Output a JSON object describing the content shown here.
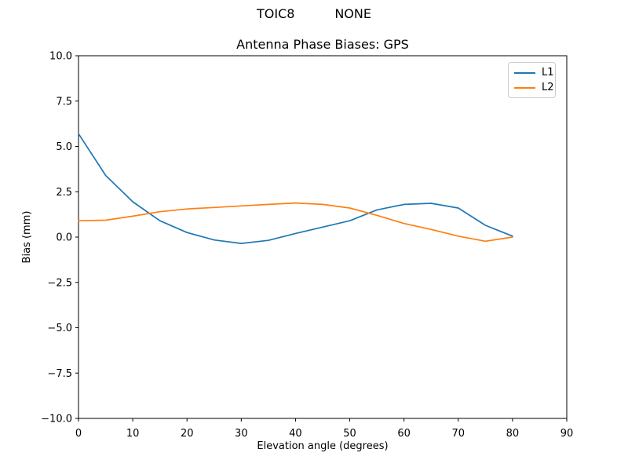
{
  "figure": {
    "suptitle": "TOIC8          NONE",
    "suptitle_parts": {
      "station": "TOIC8",
      "solution": "NONE"
    },
    "title": "Antenna Phase Biases: GPS"
  },
  "chart_data": {
    "type": "line",
    "title": "Antenna Phase Biases: GPS",
    "xlabel": "Elevation angle (degrees)",
    "ylabel": "Bias (mm)",
    "xlim": [
      0,
      90
    ],
    "ylim": [
      -10,
      10
    ],
    "grid": false,
    "legend_position": "upper right",
    "xticks": [
      0,
      10,
      20,
      30,
      40,
      50,
      60,
      70,
      80,
      90
    ],
    "xticklabels": [
      "0",
      "10",
      "20",
      "30",
      "40",
      "50",
      "60",
      "70",
      "80",
      "90"
    ],
    "yticks": [
      10.0,
      7.5,
      5.0,
      2.5,
      0.0,
      -2.5,
      -5.0,
      -7.5,
      -10.0
    ],
    "yticklabels": [
      "10.0",
      "7.5",
      "5.0",
      "2.5",
      "0.0",
      "−2.5",
      "−5.0",
      "−7.5",
      "−10.0"
    ],
    "x": [
      0,
      5,
      10,
      15,
      20,
      25,
      30,
      35,
      40,
      45,
      50,
      55,
      60,
      65,
      70,
      75,
      80
    ],
    "series": [
      {
        "name": "L1",
        "color": "#1f77b4",
        "values": [
          5.7,
          3.4,
          1.95,
          0.9,
          0.25,
          -0.16,
          -0.35,
          -0.18,
          0.2,
          0.55,
          0.9,
          1.5,
          1.8,
          1.86,
          1.6,
          0.65,
          0.05
        ]
      },
      {
        "name": "L2",
        "color": "#ff7f0e",
        "values": [
          0.9,
          0.93,
          1.15,
          1.4,
          1.55,
          1.63,
          1.72,
          1.8,
          1.88,
          1.8,
          1.6,
          1.2,
          0.75,
          0.42,
          0.05,
          -0.23,
          0.0
        ]
      }
    ]
  }
}
